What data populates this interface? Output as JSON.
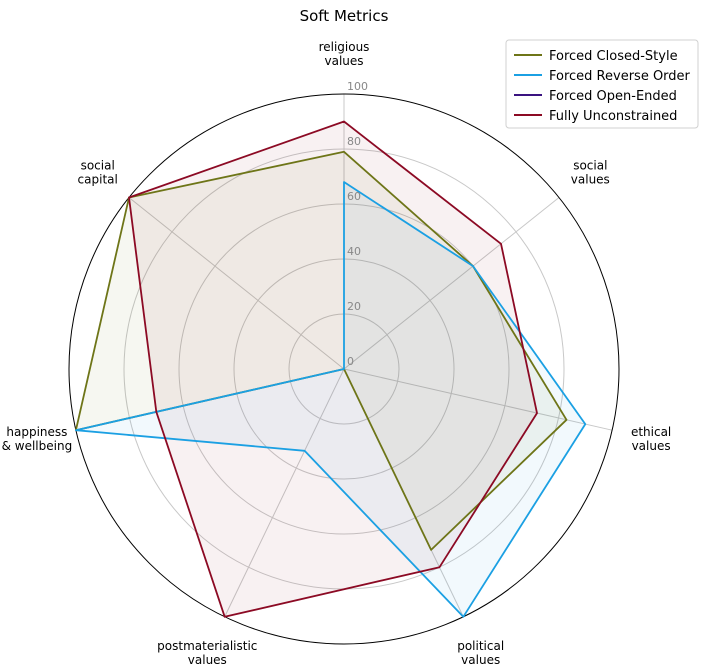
{
  "chart_data": {
    "type": "radar",
    "title": "Soft Metrics",
    "axes": [
      [
        "religious",
        "values"
      ],
      [
        "social",
        "values"
      ],
      [
        "ethical",
        "values"
      ],
      [
        "political",
        "values"
      ],
      [
        "postmaterialistic",
        "values"
      ],
      [
        "happiness",
        "& wellbeing"
      ],
      [
        "social",
        "capital"
      ]
    ],
    "rlim": [
      0,
      100
    ],
    "rticks": [
      "0",
      "20",
      "40",
      "60",
      "80",
      "100"
    ],
    "rtick_values": [
      0,
      20,
      40,
      60,
      80,
      100
    ],
    "grid": true,
    "legend_placement": "top-right",
    "series": [
      {
        "name": "Forced Closed-Style",
        "color": "#6e7518",
        "values": [
          79,
          60,
          83,
          73,
          0,
          100,
          100
        ]
      },
      {
        "name": "Forced Reverse Order",
        "color": "#1ba0e3",
        "values": [
          68,
          60,
          90,
          100,
          33,
          100,
          0
        ]
      },
      {
        "name": "Forced Open-Ended",
        "color": "#3a1380",
        "values": [
          0,
          0,
          0,
          0,
          0,
          0,
          0
        ]
      },
      {
        "name": "Fully Unconstrained",
        "color": "#8c0a24",
        "values": [
          90,
          73,
          72,
          80,
          100,
          70,
          100
        ]
      }
    ]
  }
}
